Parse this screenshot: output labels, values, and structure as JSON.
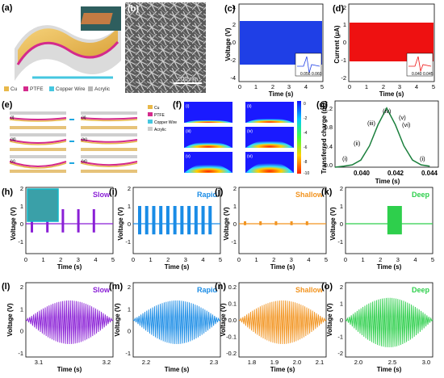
{
  "panel_labels": {
    "a": "(a)",
    "b": "(b)",
    "c": "(c)",
    "d": "(d)",
    "e": "(e)",
    "f": "(f)",
    "g": "(g)",
    "h": "(h)",
    "i": "(i)",
    "j": "(j)",
    "k": "(k)",
    "l": "(l)",
    "m": "(m)",
    "n": "(n)",
    "o": "(o)"
  },
  "legend_a": {
    "items": [
      "Cu",
      "PTFE",
      "Copper Wire",
      "Acrylic"
    ],
    "colors": [
      "#e8b84a",
      "#d42a8c",
      "#45c7e0",
      "#b8b8b8"
    ]
  },
  "sem_scale": "200 nm",
  "colors": {
    "blue": "#1f3fe6",
    "red": "#ee1111",
    "green": "#1a7f3c",
    "purple": "#8a1fd6",
    "lightblue": "#1a8ce6",
    "orange": "#f29420",
    "bright_green": "#2ecf4c"
  },
  "panel_c": {
    "ylabel": "Voltage (V)",
    "xlabel": "Time (s)",
    "yticks": [
      "4",
      "2",
      "0",
      "-2",
      "-4"
    ],
    "xticks": [
      "0",
      "1",
      "2",
      "3",
      "4",
      "5"
    ],
    "inset_ylabel": "Voltage (V)",
    "inset_xticks": [
      "0.056",
      "0.060"
    ],
    "inset_xlabel": "Time (s)"
  },
  "panel_d": {
    "ylabel": "Current (μA)",
    "xlabel": "Time (s)",
    "yticks": [
      "2",
      "1",
      "0",
      "-1",
      "-2"
    ],
    "xticks": [
      "0",
      "1",
      "2",
      "3",
      "4",
      "5"
    ],
    "inset_ylabel": "Current (μA)",
    "inset_xticks": [
      "0.040",
      "0.045"
    ],
    "inset_xlabel": "Time (s)"
  },
  "panel_e": {
    "roman": [
      "(i)",
      "(ii)",
      "(iii)",
      "(iv)",
      "(v)",
      "(vi)"
    ],
    "legend": [
      "Cu",
      "PTFE",
      "Copper Wire",
      "Acrylic"
    ]
  },
  "panel_f": {
    "roman": [
      "(i)",
      "(ii)",
      "(iii)",
      "(iv)",
      "(v)",
      "(vi)"
    ],
    "colorbar": [
      "0",
      "-2",
      "-4",
      "-6",
      "-8",
      "-10"
    ]
  },
  "panel_g": {
    "ylabel": "Transferred charge (nC)",
    "xlabel": "Time (s)",
    "xticks": [
      "0.040",
      "0.042",
      "0.044"
    ],
    "yticks": [
      "0.0",
      "0.4",
      "0.8",
      "1.2"
    ],
    "points": [
      "(i)",
      "(ii)",
      "(iii)",
      "(iv)",
      "(v)",
      "(vi)",
      "(i)"
    ]
  },
  "row3": {
    "titles": [
      "Slow",
      "Rapid",
      "Shallow",
      "Deep"
    ],
    "ylabel": "Voltage (V)",
    "xlabel": "Time (s)",
    "yticks": [
      "2",
      "1",
      "0",
      "-1"
    ],
    "xticks": [
      "0",
      "1",
      "2",
      "3",
      "4",
      "5"
    ]
  },
  "panel_l": {
    "title": "Slow",
    "xticks": [
      "3.1",
      "3.2"
    ],
    "yticks": [
      "2",
      "1",
      "0",
      "-1"
    ]
  },
  "panel_m": {
    "title": "Rapid",
    "xticks": [
      "2.2",
      "2.3"
    ],
    "yticks": [
      "2",
      "1",
      "0",
      "-1"
    ]
  },
  "panel_n": {
    "title": "Shallow",
    "xticks": [
      "1.8",
      "1.9",
      "2.0",
      "2.1"
    ],
    "yticks": [
      "0.2",
      "0.1",
      "0.0",
      "-0.1",
      "-0.2"
    ]
  },
  "panel_o": {
    "title": "Deep",
    "xticks": [
      "2.0",
      "2.5",
      "3.0"
    ],
    "yticks": [
      "2",
      "1",
      "0",
      "-1",
      "-2"
    ]
  },
  "chart_data": [
    {
      "type": "line",
      "panel": "g",
      "xlabel": "Time (s)",
      "ylabel": "Transferred charge (nC)",
      "x": [
        0.0385,
        0.039,
        0.0395,
        0.04,
        0.0405,
        0.041,
        0.0415,
        0.042,
        0.0425,
        0.043,
        0.0435,
        0.044
      ],
      "y": [
        0.0,
        0.02,
        0.05,
        0.15,
        0.45,
        0.9,
        1.25,
        0.9,
        0.45,
        0.15,
        0.05,
        0.02
      ],
      "xlim": [
        0.0385,
        0.0445
      ],
      "ylim": [
        0,
        1.4
      ]
    }
  ]
}
